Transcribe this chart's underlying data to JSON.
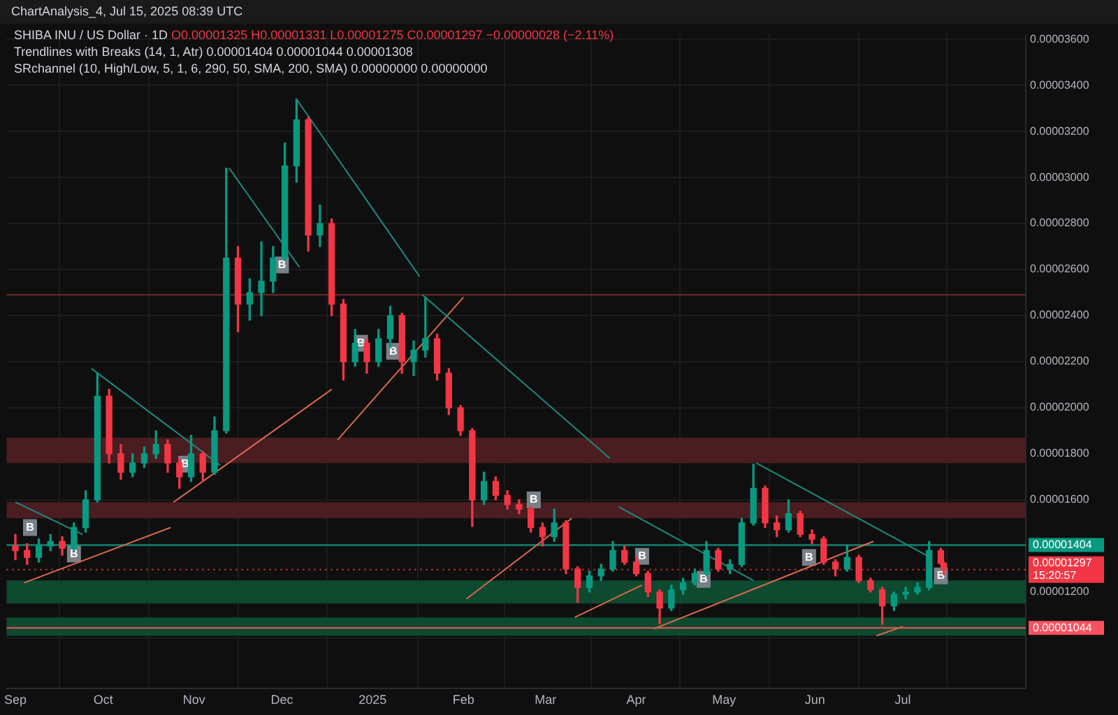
{
  "chart_data": {
    "type": "candlestick",
    "title": "SHIBA INU / US Dollar · 1D",
    "subtitle": "O0.00001325 H0.00001331 L0.00001275 C0.00001297 −0.00000028 (−2.11%)",
    "annotations": [
      "ChartAnalysis_4, Jul 15, 2025 08:39 UTC",
      "Trendlines with Breaks (14, 1, Atr) 0.00001404 0.00001044 0.00001308",
      "SRchannel (10, High/Low, 5, 1, 6, 290, 50, SMA, 200, SMA) 0.00000000 0.00000000",
      {
        "text": "B",
        "x": "2024-09-06",
        "y": 1.48e-05
      },
      {
        "text": "B",
        "x": "2024-09-21",
        "y": 1.365e-05
      },
      {
        "text": "B",
        "x": "2024-10-29",
        "y": 1.755e-05
      },
      {
        "text": "B",
        "x": "2024-12-01",
        "y": 2.62e-05
      },
      {
        "text": "B",
        "x": "2024-12-28",
        "y": 2.28e-05
      },
      {
        "text": "B",
        "x": "2025-01-08",
        "y": 2.245e-05
      },
      {
        "text": "B",
        "x": "2025-02-25",
        "y": 1.6e-05
      },
      {
        "text": "B",
        "x": "2025-04-03",
        "y": 1.355e-05
      },
      {
        "text": "B",
        "x": "2025-04-24",
        "y": 1.255e-05
      },
      {
        "text": "B",
        "x": "2025-05-30",
        "y": 1.35e-05
      },
      {
        "text": "B",
        "x": "2025-07-14",
        "y": 1.27e-05
      }
    ],
    "x": [
      "2024-09-01",
      "2024-09-05",
      "2024-09-09",
      "2024-09-13",
      "2024-09-17",
      "2024-09-21",
      "2024-09-25",
      "2024-09-29",
      "2024-10-03",
      "2024-10-07",
      "2024-10-11",
      "2024-10-15",
      "2024-10-19",
      "2024-10-23",
      "2024-10-27",
      "2024-10-31",
      "2024-11-04",
      "2024-11-08",
      "2024-11-12",
      "2024-11-16",
      "2024-11-20",
      "2024-11-24",
      "2024-11-28",
      "2024-12-02",
      "2024-12-06",
      "2024-12-10",
      "2024-12-14",
      "2024-12-18",
      "2024-12-22",
      "2024-12-26",
      "2024-12-30",
      "2025-01-03",
      "2025-01-07",
      "2025-01-11",
      "2025-01-15",
      "2025-01-19",
      "2025-01-23",
      "2025-01-27",
      "2025-01-31",
      "2025-02-04",
      "2025-02-08",
      "2025-02-12",
      "2025-02-16",
      "2025-02-20",
      "2025-02-24",
      "2025-02-28",
      "2025-03-04",
      "2025-03-08",
      "2025-03-12",
      "2025-03-16",
      "2025-03-20",
      "2025-03-24",
      "2025-03-28",
      "2025-04-01",
      "2025-04-05",
      "2025-04-09",
      "2025-04-13",
      "2025-04-17",
      "2025-04-21",
      "2025-04-25",
      "2025-04-29",
      "2025-05-03",
      "2025-05-07",
      "2025-05-11",
      "2025-05-15",
      "2025-05-19",
      "2025-05-23",
      "2025-05-27",
      "2025-05-31",
      "2025-06-04",
      "2025-06-08",
      "2025-06-12",
      "2025-06-16",
      "2025-06-20",
      "2025-06-24",
      "2025-06-28",
      "2025-07-02",
      "2025-07-06",
      "2025-07-10",
      "2025-07-14",
      "2025-07-15"
    ],
    "ohlc": [
      [
        1.4e-05,
        1.45e-05,
        1.34e-05,
        1.38e-05
      ],
      [
        1.38e-05,
        1.41e-05,
        1.32e-05,
        1.35e-05
      ],
      [
        1.35e-05,
        1.43e-05,
        1.33e-05,
        1.4e-05
      ],
      [
        1.4e-05,
        1.45e-05,
        1.38e-05,
        1.42e-05
      ],
      [
        1.42e-05,
        1.44e-05,
        1.36e-05,
        1.39e-05
      ],
      [
        1.39e-05,
        1.5e-05,
        1.38e-05,
        1.48e-05
      ],
      [
        1.48e-05,
        1.64e-05,
        1.46e-05,
        1.6e-05
      ],
      [
        1.6e-05,
        2.15e-05,
        1.59e-05,
        2.05e-05
      ],
      [
        2.05e-05,
        2.08e-05,
        1.76e-05,
        1.8e-05
      ],
      [
        1.8e-05,
        1.84e-05,
        1.69e-05,
        1.72e-05
      ],
      [
        1.72e-05,
        1.8e-05,
        1.7e-05,
        1.76e-05
      ],
      [
        1.76e-05,
        1.83e-05,
        1.74e-05,
        1.8e-05
      ],
      [
        1.8e-05,
        1.9e-05,
        1.78e-05,
        1.84e-05
      ],
      [
        1.84e-05,
        1.86e-05,
        1.72e-05,
        1.76e-05
      ],
      [
        1.76e-05,
        1.78e-05,
        1.65e-05,
        1.7e-05
      ],
      [
        1.7e-05,
        1.88e-05,
        1.68e-05,
        1.8e-05
      ],
      [
        1.8e-05,
        1.81e-05,
        1.68e-05,
        1.72e-05
      ],
      [
        1.72e-05,
        1.96e-05,
        1.71e-05,
        1.9e-05
      ],
      [
        1.9e-05,
        3.04e-05,
        1.89e-05,
        2.65e-05
      ],
      [
        2.65e-05,
        2.7e-05,
        2.33e-05,
        2.45e-05
      ],
      [
        2.45e-05,
        2.56e-05,
        2.38e-05,
        2.5e-05
      ],
      [
        2.5e-05,
        2.72e-05,
        2.4e-05,
        2.55e-05
      ],
      [
        2.55e-05,
        2.7e-05,
        2.5e-05,
        2.65e-05
      ],
      [
        2.65e-05,
        3.15e-05,
        2.64e-05,
        3.05e-05
      ],
      [
        3.05e-05,
        3.34e-05,
        2.98e-05,
        3.25e-05
      ],
      [
        3.25e-05,
        3.26e-05,
        2.68e-05,
        2.75e-05
      ],
      [
        2.75e-05,
        2.88e-05,
        2.7e-05,
        2.8e-05
      ],
      [
        2.8e-05,
        2.82e-05,
        2.4e-05,
        2.45e-05
      ],
      [
        2.45e-05,
        2.47e-05,
        2.12e-05,
        2.2e-05
      ],
      [
        2.2e-05,
        2.34e-05,
        2.18e-05,
        2.28e-05
      ],
      [
        2.28e-05,
        2.3e-05,
        2.15e-05,
        2.2e-05
      ],
      [
        2.2e-05,
        2.34e-05,
        2.18e-05,
        2.3e-05
      ],
      [
        2.3e-05,
        2.44e-05,
        2.26e-05,
        2.4e-05
      ],
      [
        2.4e-05,
        2.41e-05,
        2.15e-05,
        2.2e-05
      ],
      [
        2.2e-05,
        2.29e-05,
        2.14e-05,
        2.25e-05
      ],
      [
        2.25e-05,
        2.48e-05,
        2.22e-05,
        2.3e-05
      ],
      [
        2.3e-05,
        2.32e-05,
        2.12e-05,
        2.15e-05
      ],
      [
        2.15e-05,
        2.17e-05,
        1.97e-05,
        2e-05
      ],
      [
        2e-05,
        2.01e-05,
        1.88e-05,
        1.9e-05
      ],
      [
        1.9e-05,
        1.91e-05,
        1.485e-05,
        1.6e-05
      ],
      [
        1.6e-05,
        1.72e-05,
        1.58e-05,
        1.68e-05
      ],
      [
        1.68e-05,
        1.7e-05,
        1.6e-05,
        1.62e-05
      ],
      [
        1.62e-05,
        1.64e-05,
        1.56e-05,
        1.58e-05
      ],
      [
        1.58e-05,
        1.6e-05,
        1.54e-05,
        1.56e-05
      ],
      [
        1.56e-05,
        1.57e-05,
        1.46e-05,
        1.48e-05
      ],
      [
        1.48e-05,
        1.5e-05,
        1.4e-05,
        1.44e-05
      ],
      [
        1.44e-05,
        1.56e-05,
        1.42e-05,
        1.5e-05
      ],
      [
        1.5e-05,
        1.51e-05,
        1.28e-05,
        1.3e-05
      ],
      [
        1.3e-05,
        1.31e-05,
        1.155e-05,
        1.22e-05
      ],
      [
        1.22e-05,
        1.29e-05,
        1.2e-05,
        1.27e-05
      ],
      [
        1.27e-05,
        1.32e-05,
        1.25e-05,
        1.3e-05
      ],
      [
        1.3e-05,
        1.42e-05,
        1.29e-05,
        1.38e-05
      ],
      [
        1.38e-05,
        1.4e-05,
        1.32e-05,
        1.33e-05
      ],
      [
        1.33e-05,
        1.35e-05,
        1.27e-05,
        1.28e-05
      ],
      [
        1.28e-05,
        1.29e-05,
        1.18e-05,
        1.2e-05
      ],
      [
        1.2e-05,
        1.21e-05,
        1.062e-05,
        1.13e-05
      ],
      [
        1.13e-05,
        1.23e-05,
        1.12e-05,
        1.21e-05
      ],
      [
        1.21e-05,
        1.26e-05,
        1.19e-05,
        1.24e-05
      ],
      [
        1.24e-05,
        1.3e-05,
        1.23e-05,
        1.28e-05
      ],
      [
        1.28e-05,
        1.42e-05,
        1.27e-05,
        1.38e-05
      ],
      [
        1.38e-05,
        1.39e-05,
        1.29e-05,
        1.3e-05
      ],
      [
        1.3e-05,
        1.34e-05,
        1.28e-05,
        1.32e-05
      ],
      [
        1.32e-05,
        1.52e-05,
        1.31e-05,
        1.5e-05
      ],
      [
        1.5e-05,
        1.755e-05,
        1.49e-05,
        1.65e-05
      ],
      [
        1.65e-05,
        1.66e-05,
        1.48e-05,
        1.5e-05
      ],
      [
        1.5e-05,
        1.53e-05,
        1.44e-05,
        1.47e-05
      ],
      [
        1.47e-05,
        1.6e-05,
        1.46e-05,
        1.54e-05
      ],
      [
        1.54e-05,
        1.55e-05,
        1.44e-05,
        1.45e-05
      ],
      [
        1.45e-05,
        1.47e-05,
        1.41e-05,
        1.43e-05
      ],
      [
        1.43e-05,
        1.44e-05,
        1.32e-05,
        1.33e-05
      ],
      [
        1.33e-05,
        1.34e-05,
        1.27e-05,
        1.3e-05
      ],
      [
        1.3e-05,
        1.4e-05,
        1.29e-05,
        1.35e-05
      ],
      [
        1.35e-05,
        1.36e-05,
        1.24e-05,
        1.25e-05
      ],
      [
        1.25e-05,
        1.26e-05,
        1.2e-05,
        1.21e-05
      ],
      [
        1.21e-05,
        1.22e-05,
        1.06e-05,
        1.14e-05
      ],
      [
        1.14e-05,
        1.2e-05,
        1.12e-05,
        1.19e-05
      ],
      [
        1.19e-05,
        1.22e-05,
        1.17e-05,
        1.2e-05
      ],
      [
        1.2e-05,
        1.24e-05,
        1.19e-05,
        1.22e-05
      ],
      [
        1.22e-05,
        1.42e-05,
        1.21e-05,
        1.38e-05
      ],
      [
        1.38e-05,
        1.39e-05,
        1.32e-05,
        1.325e-05
      ],
      [
        1.325e-05,
        1.331e-05,
        1.275e-05,
        1.297e-05
      ]
    ],
    "series": [
      {
        "type": "line",
        "color": "#1f8a80",
        "x": [
          "2024-09-01",
          "2024-09-24"
        ],
        "values": [
          1.59e-05,
          1.45e-05
        ]
      },
      {
        "type": "line",
        "color": "#1f8a80",
        "x": [
          "2024-09-27",
          "2024-11-10"
        ],
        "values": [
          2.17e-05,
          1.75e-05
        ]
      },
      {
        "type": "line",
        "color": "#1f8a80",
        "x": [
          "2024-11-13",
          "2024-12-07"
        ],
        "values": [
          3.04e-05,
          2.61e-05
        ]
      },
      {
        "type": "line",
        "color": "#1f8a80",
        "x": [
          "2024-12-06",
          "2025-01-17"
        ],
        "values": [
          3.34e-05,
          2.57e-05
        ]
      },
      {
        "type": "line",
        "color": "#1f8a80",
        "x": [
          "2025-01-18",
          "2025-03-23"
        ],
        "values": [
          2.49e-05,
          1.78e-05
        ]
      },
      {
        "type": "line",
        "color": "#1f8a80",
        "x": [
          "2025-03-26",
          "2025-05-11"
        ],
        "values": [
          1.57e-05,
          1.25e-05
        ]
      },
      {
        "type": "line",
        "color": "#1f8a80",
        "x": [
          "2025-05-12",
          "2025-07-09"
        ],
        "values": [
          1.76e-05,
          1.36e-05
        ]
      },
      {
        "type": "line",
        "color": "#d9694f",
        "x": [
          "2024-09-04",
          "2024-10-24"
        ],
        "values": [
          1.24e-05,
          1.48e-05
        ]
      },
      {
        "type": "line",
        "color": "#d9694f",
        "x": [
          "2024-10-25",
          "2024-12-18"
        ],
        "values": [
          1.59e-05,
          2.08e-05
        ]
      },
      {
        "type": "line",
        "color": "#d9694f",
        "x": [
          "2024-12-20",
          "2025-02-01"
        ],
        "values": [
          1.86e-05,
          2.48e-05
        ]
      },
      {
        "type": "line",
        "color": "#d9694f",
        "x": [
          "2025-02-02",
          "2025-03-10"
        ],
        "values": [
          1.17e-05,
          1.52e-05
        ]
      },
      {
        "type": "line",
        "color": "#d9694f",
        "x": [
          "2025-03-11",
          "2025-04-03"
        ],
        "values": [
          1.09e-05,
          1.23e-05
        ]
      },
      {
        "type": "line",
        "color": "#d9694f",
        "x": [
          "2025-04-07",
          "2025-06-21"
        ],
        "values": [
          1.04e-05,
          1.42e-05
        ]
      },
      {
        "type": "line",
        "color": "#d9694f",
        "x": [
          "2025-06-22",
          "2025-07-01"
        ],
        "values": [
          1.01e-05,
          1.05e-05
        ]
      }
    ],
    "bands": [
      {
        "axis": "y",
        "from": 1.76e-05,
        "to": 1.87e-05,
        "color": "#4a1d21"
      },
      {
        "axis": "y",
        "from": 1.52e-05,
        "to": 1.59e-05,
        "color": "#4a1d21"
      },
      {
        "axis": "y",
        "from": 1.15e-05,
        "to": 1.25e-05,
        "color": "#0d4a2f"
      },
      {
        "axis": "y",
        "from": 1.01e-05,
        "to": 1.09e-05,
        "color": "#0d4a2f"
      }
    ],
    "ref_lines": [
      {
        "axis": "y",
        "value": 2.49e-05,
        "color": "#6e2b2b"
      },
      {
        "axis": "y",
        "value": 1.404e-05,
        "label": "0.00001404",
        "color": "#089981"
      },
      {
        "axis": "y",
        "value": 1.297e-05,
        "label": "0.00001297\n15:20:57",
        "color": "#f23645",
        "line_style": "dotted"
      },
      {
        "axis": "y",
        "value": 1.044e-05,
        "label": "0.00001044",
        "color": "#f7525f"
      }
    ],
    "xlim": [
      "2024-08-29",
      "2025-08-12"
    ],
    "xticks": [
      {
        "value": "2024-09-01",
        "label": "Sep"
      },
      {
        "value": "2024-10-01",
        "label": "Oct"
      },
      {
        "value": "2024-11-01",
        "label": "Nov"
      },
      {
        "value": "2024-12-01",
        "label": "Dec"
      },
      {
        "value": "2025-01-01",
        "label": "2025"
      },
      {
        "value": "2025-02-01",
        "label": "Feb"
      },
      {
        "value": "2025-03-01",
        "label": "Mar"
      },
      {
        "value": "2025-04-01",
        "label": "Apr"
      },
      {
        "value": "2025-05-01",
        "label": "May"
      },
      {
        "value": "2025-06-01",
        "label": "Jun"
      },
      {
        "value": "2025-07-01",
        "label": "Jul"
      }
    ],
    "ylim": [
      7.8e-06,
      3.62e-05
    ],
    "yticks": [
      {
        "value": 1e-05,
        "label": null
      },
      {
        "value": 1.2e-05,
        "label": "0.00001200"
      },
      {
        "value": 1.4e-05,
        "label": null
      },
      {
        "value": 1.6e-05,
        "label": "0.00001600"
      },
      {
        "value": 1.8e-05,
        "label": "0.00001800"
      },
      {
        "value": 2e-05,
        "label": "0.00002000"
      },
      {
        "value": 2.2e-05,
        "label": "0.00002200"
      },
      {
        "value": 2.4e-05,
        "label": "0.00002400"
      },
      {
        "value": 2.6e-05,
        "label": "0.00002600"
      },
      {
        "value": 2.8e-05,
        "label": "0.00002800"
      },
      {
        "value": 3e-05,
        "label": "0.00003000"
      },
      {
        "value": 3.2e-05,
        "label": "0.00003200"
      },
      {
        "value": 3.4e-05,
        "label": "0.00003400"
      },
      {
        "value": 3.6e-05,
        "label": "0.00003600"
      }
    ],
    "grid": true,
    "legend": false,
    "marker": "none"
  }
}
